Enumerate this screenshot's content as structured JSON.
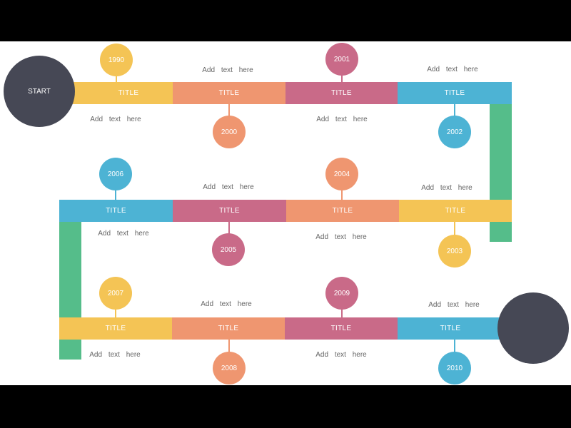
{
  "colors": {
    "yellow": "#F4C455",
    "orange": "#EF9670",
    "pink": "#C96A88",
    "blue": "#4DB3D4",
    "green": "#55BD8A",
    "dark": "#464855"
  },
  "start_label": "START",
  "end_label": "",
  "items": [
    {
      "year": "1990",
      "title": "TITLE",
      "note": "Add text here"
    },
    {
      "year": "2000",
      "title": "TITLE",
      "note": "Add text here"
    },
    {
      "year": "2001",
      "title": "TITLE",
      "note": "Add text here"
    },
    {
      "year": "2002",
      "title": "TITLE",
      "note": "Add text here"
    },
    {
      "year": "2003",
      "title": "TITLE",
      "note": "Add text here"
    },
    {
      "year": "2004",
      "title": "TITLE",
      "note": "Add text here"
    },
    {
      "year": "2005",
      "title": "TITLE",
      "note": "Add text here"
    },
    {
      "year": "2006",
      "title": "TITLE",
      "note": "Add text here"
    },
    {
      "year": "2007",
      "title": "TITLE",
      "note": "Add text here"
    },
    {
      "year": "2008",
      "title": "TITLE",
      "note": "Add text here"
    },
    {
      "year": "2009",
      "title": "TITLE",
      "note": "Add text here"
    },
    {
      "year": "2010",
      "title": "TITLE",
      "note": "Add text here"
    }
  ]
}
